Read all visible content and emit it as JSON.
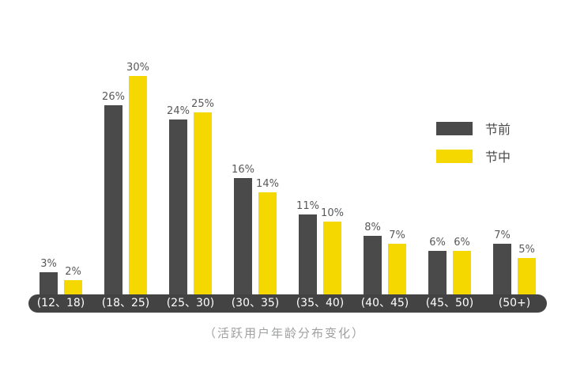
{
  "chart_data": {
    "type": "bar",
    "title": "（活跃用户年龄分布变化）",
    "categories": [
      "(12、18)",
      "(18、25)",
      "(25、30)",
      "(30、35)",
      "(35、40)",
      "(40、45)",
      "(45、50)",
      "(50+)"
    ],
    "series": [
      {
        "name": "节前",
        "color": "#4A4A4B",
        "values": [
          3,
          26,
          24,
          16,
          11,
          8,
          6,
          7
        ]
      },
      {
        "name": "节中",
        "color": "#F5D800",
        "values": [
          2,
          30,
          25,
          14,
          10,
          7,
          6,
          5
        ]
      }
    ],
    "value_suffix": "%",
    "ylim": [
      0,
      30
    ],
    "grid": false,
    "legend_position": "right",
    "colors": {
      "axis_bar": "#434343",
      "axis_label": "#FFFFFF",
      "value_label": "#58595B",
      "caption": "#9FA0A0",
      "background": "#FFFFFF"
    }
  }
}
